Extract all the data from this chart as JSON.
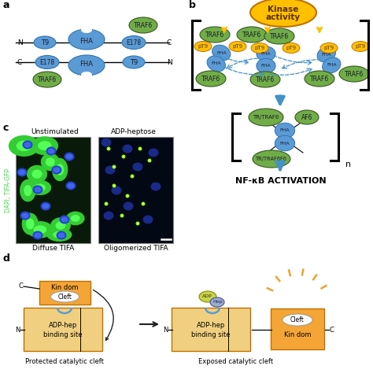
{
  "background": "#ffffff",
  "blue": "#5b9bd5",
  "blue_edge": "#2e75b6",
  "green": "#70ad47",
  "green_edge": "#375623",
  "yellow": "#ffc000",
  "yellow_edge": "#c07000",
  "orange_box": "#f4a535",
  "tan_box": "#f5c842",
  "tan_box2": "#f0d080",
  "text_color": "#000000",
  "nfkb_text": "NF-κB ACTIVATION",
  "protected_text": "Protected catalytic cleft",
  "exposed_text": "Exposed catalytic cleft"
}
